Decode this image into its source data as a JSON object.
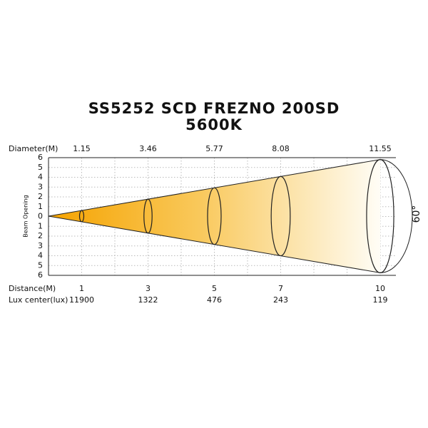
{
  "title": "SS5252 SCD FREZNO 200SD",
  "subtitle": "5600K",
  "diameter_label": "Diameter(M)",
  "distance_label": "Distance(M)",
  "lux_label": "Lux center(lux)",
  "axis_label": "Beam Opening",
  "angle_label": "60°",
  "beam_opening_ticks": [
    6,
    5,
    4,
    3,
    2,
    1,
    0,
    1,
    2,
    3,
    4,
    5,
    6
  ],
  "beams": [
    {
      "distance": 1,
      "diameter": 1.15,
      "lux": 11900
    },
    {
      "distance": 3,
      "diameter": 3.46,
      "lux": 1322
    },
    {
      "distance": 5,
      "diameter": 5.77,
      "lux": 476
    },
    {
      "distance": 7,
      "diameter": 8.08,
      "lux": 243
    },
    {
      "distance": 10,
      "diameter": 11.55,
      "lux": 119
    }
  ]
}
